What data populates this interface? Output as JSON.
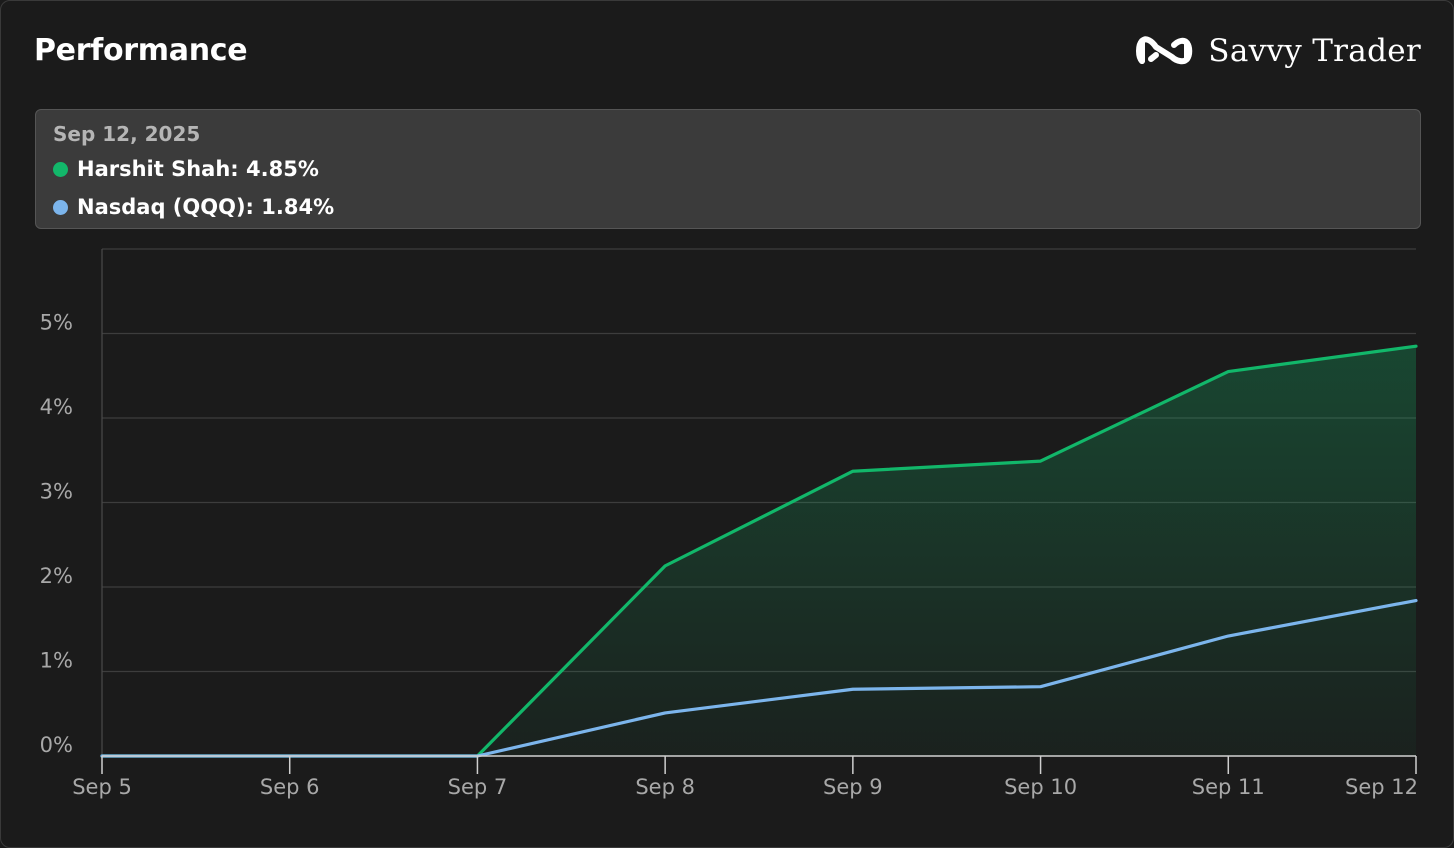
{
  "header": {
    "title": "Performance",
    "brand_name": "Savvy Trader"
  },
  "tooltip": {
    "date": "Sep 12, 2025",
    "rows": [
      {
        "label": "Harshit Shah: 4.85%",
        "color": "#12b76a"
      },
      {
        "label": "Nasdaq (QQQ): 1.84%",
        "color": "#7cb5ec"
      }
    ]
  },
  "chart_data": {
    "type": "line",
    "title": "",
    "xlabel": "",
    "ylabel": "",
    "x": [
      "Sep 5",
      "Sep 6",
      "Sep 7",
      "Sep 8",
      "Sep 9",
      "Sep 10",
      "Sep 11",
      "Sep 12"
    ],
    "y_ticks": [
      "0%",
      "1%",
      "2%",
      "3%",
      "4%",
      "5%"
    ],
    "ylim": [
      0,
      6
    ],
    "grid": true,
    "series": [
      {
        "name": "Harshit Shah",
        "color": "#12b76a",
        "area": true,
        "values": [
          0,
          0,
          0,
          2.25,
          3.37,
          3.49,
          4.55,
          4.85
        ]
      },
      {
        "name": "Nasdaq (QQQ)",
        "color": "#7cb5ec",
        "area": false,
        "values": [
          0,
          0,
          0,
          0.51,
          0.79,
          0.82,
          1.42,
          1.84
        ]
      }
    ]
  }
}
